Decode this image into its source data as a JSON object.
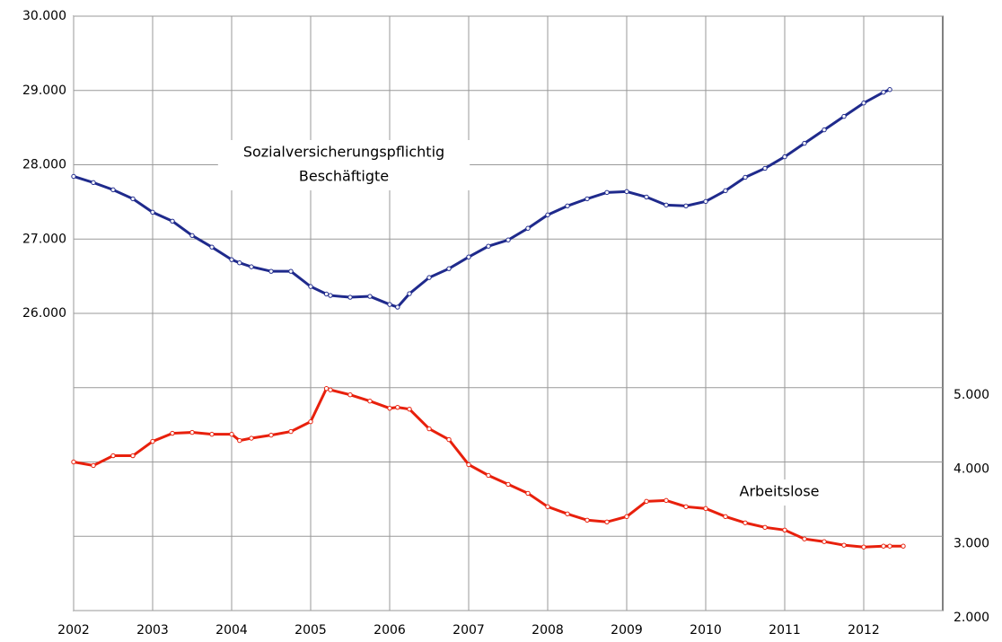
{
  "chart_data": {
    "type": "line",
    "x": [
      2002.0,
      2002.25,
      2002.5,
      2002.75,
      2003.0,
      2003.25,
      2003.5,
      2003.75,
      2004.0,
      2004.1,
      2004.25,
      2004.5,
      2004.75,
      2005.0,
      2005.2,
      2005.25,
      2005.5,
      2005.75,
      2006.0,
      2006.1,
      2006.25,
      2006.5,
      2006.75,
      2007.0,
      2007.25,
      2007.5,
      2007.75,
      2008.0,
      2008.25,
      2008.5,
      2008.75,
      2009.0,
      2009.25,
      2009.5,
      2009.75,
      2010.0,
      2010.25,
      2010.5,
      2010.75,
      2011.0,
      2011.25,
      2011.5,
      2011.75,
      2012.0,
      2012.25,
      2012.33,
      2012.5
    ],
    "series": [
      {
        "name": "Sozialversicherungspflichtig Beschäftigte",
        "color": "#1f2a8c",
        "values": [
          27843,
          27760,
          27663,
          27542,
          27361,
          27241,
          27048,
          26892,
          26723,
          26680,
          26627,
          26566,
          26566,
          26361,
          26260,
          26241,
          26217,
          26229,
          26120,
          26084,
          26265,
          26482,
          26602,
          26759,
          26904,
          26988,
          27145,
          27325,
          27446,
          27542,
          27627,
          27639,
          27566,
          27458,
          27446,
          27506,
          27651,
          27831,
          27952,
          28108,
          28289,
          28470,
          28651,
          28831,
          28976,
          29012,
          null
        ]
      },
      {
        "name": "Arbeitslose",
        "color": "#e8200c",
        "axis": "y2",
        "values": [
          4000,
          3952,
          4084,
          4084,
          4277,
          4386,
          4398,
          4373,
          4373,
          4289,
          4320,
          4361,
          4410,
          4542,
          4988,
          4970,
          4904,
          4819,
          4723,
          4735,
          4711,
          4446,
          4301,
          3964,
          3819,
          3699,
          3578,
          3398,
          3301,
          3217,
          3193,
          3265,
          3470,
          3482,
          3398,
          3373,
          3265,
          3181,
          3120,
          3084,
          2964,
          2928,
          2880,
          2855,
          2867,
          2867,
          2867
        ]
      }
    ],
    "annotations": [
      {
        "lines": [
          "Sozialversicherungspflichtig",
          "Beschäftigte"
        ],
        "series": 0
      },
      {
        "lines": [
          "Arbeitslose"
        ],
        "series": 1
      }
    ],
    "xlim": [
      2002,
      2013
    ],
    "xticks": [
      2002,
      2003,
      2004,
      2005,
      2006,
      2007,
      2008,
      2009,
      2010,
      2011,
      2012
    ],
    "ylim": [
      22000,
      30000
    ],
    "yticks": [
      {
        "value": 26000,
        "label": "26.000"
      },
      {
        "value": 27000,
        "label": "27.000"
      },
      {
        "value": 28000,
        "label": "28.000"
      },
      {
        "value": 29000,
        "label": "29.000"
      },
      {
        "value": 30000,
        "label": "30.000"
      }
    ],
    "y2lim": [
      2000,
      10000
    ],
    "y2ticks": [
      {
        "value": 2000,
        "label": "2.000"
      },
      {
        "value": 3000,
        "label": "3.000"
      },
      {
        "value": 4000,
        "label": "4.000"
      },
      {
        "value": 5000,
        "label": "5.000"
      }
    ],
    "grid": true
  }
}
